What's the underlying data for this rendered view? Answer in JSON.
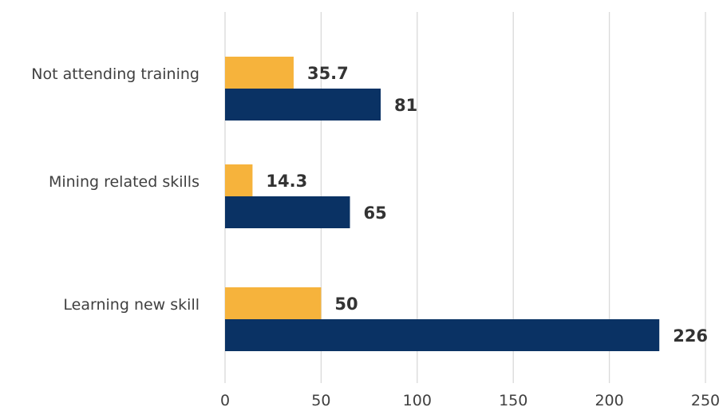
{
  "chart_data": {
    "type": "bar",
    "orientation": "horizontal",
    "title": "",
    "xlabel": "",
    "ylabel": "",
    "categories": [
      "Not attending training",
      "Mining related skills",
      "Learning new skill"
    ],
    "series": [
      {
        "color": "#F6B33C",
        "values": [
          35.7,
          14.3,
          50
        ]
      },
      {
        "color": "#0A3264",
        "values": [
          81,
          65,
          226
        ]
      }
    ],
    "data_labels": [
      [
        "35.7",
        "14.3",
        "50"
      ],
      [
        "81",
        "65",
        "226"
      ]
    ],
    "xlim": [
      0,
      250
    ],
    "xticks": [
      0,
      50,
      100,
      150,
      200,
      250
    ],
    "xtick_labels": [
      "0",
      "50",
      "100",
      "150",
      "200",
      "250"
    ],
    "grid": "vertical",
    "legend": "none"
  }
}
